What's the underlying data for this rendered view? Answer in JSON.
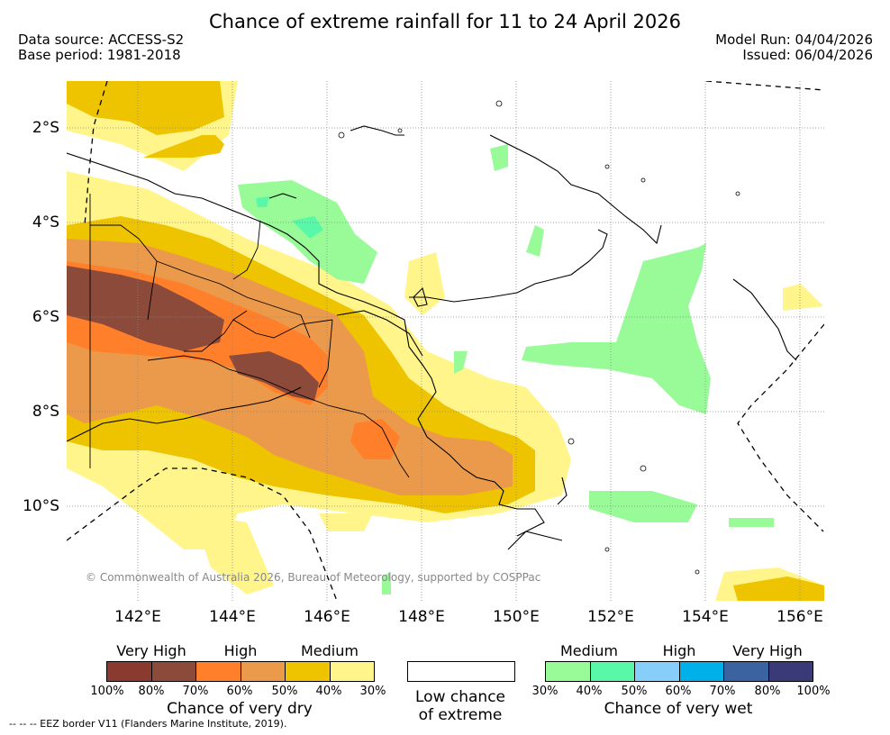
{
  "title": "Chance of extreme rainfall for 11 to 24 April 2026",
  "data_source": "Data source: ACCESS-S2",
  "base_period": "Base period: 1981-2018",
  "model_run": "Model Run: 04/04/2026",
  "issued": "Issued: 06/04/2026",
  "lat_labels": [
    "2°S",
    "4°S",
    "6°S",
    "8°S",
    "10°S"
  ],
  "lon_labels": [
    "142°E",
    "144°E",
    "146°E",
    "148°E",
    "150°E",
    "152°E",
    "154°E",
    "156°E"
  ],
  "copyright": "© Commonwealth of Australia 2026, Bureau of Meteorology, supported by COSPPac",
  "dry_legend": {
    "levels": [
      "Very High",
      "High",
      "Medium"
    ],
    "ticks": [
      "100%",
      "80%",
      "70%",
      "60%",
      "50%",
      "40%",
      "30%"
    ],
    "colors": [
      "#8b3a2f",
      "#8b4a3a",
      "#ff7f2a",
      "#ea9a4a",
      "#eec400",
      "#fff58a"
    ],
    "caption": "Chance of very dry"
  },
  "low_legend": {
    "line1": "Low chance",
    "line2": "of extreme"
  },
  "wet_legend": {
    "levels": [
      "Medium",
      "High",
      "Very High"
    ],
    "ticks": [
      "30%",
      "40%",
      "50%",
      "60%",
      "70%",
      "80%",
      "100%"
    ],
    "colors": [
      "#98fb98",
      "#58f8a8",
      "#87cefa",
      "#00b0e8",
      "#3a63a0",
      "#3a3a78"
    ],
    "caption": "Chance of very wet"
  },
  "eez_note": "-- -- -- EEZ border V11 (Flanders Marine Institute, 2019)."
}
